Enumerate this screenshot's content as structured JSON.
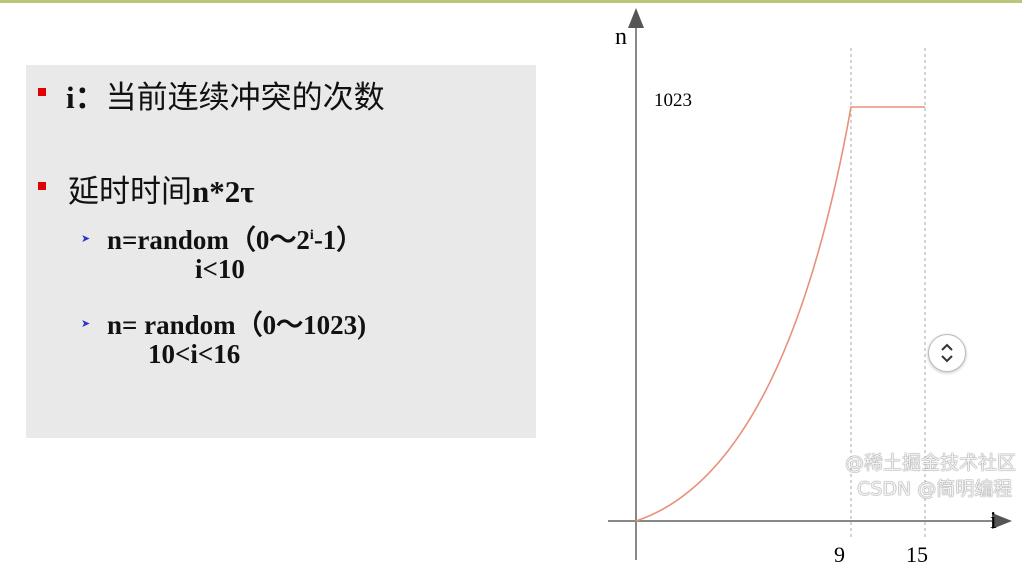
{
  "slide": {
    "bullets": [
      {
        "label": "i：",
        "text": "当前连续冲突的次数"
      },
      {
        "label": "延时时间",
        "text": "n*2τ"
      }
    ],
    "sub_bullets": [
      {
        "prefix": "n=random（0～2",
        "sup": "i",
        "suffix": "-1）",
        "condition": "i<10"
      },
      {
        "prefix": "n= random（0～1023)",
        "condition": "10<i<16"
      }
    ]
  },
  "chart_data": {
    "type": "line",
    "xlabel": "i",
    "ylabel": "n",
    "x_tick_labels": [
      "9",
      "15"
    ],
    "y_tick_labels": [
      "1023"
    ],
    "series": [
      {
        "x": [
          0,
          9,
          15
        ],
        "y": [
          0,
          1023,
          1023
        ],
        "color": "#e8907a"
      }
    ],
    "grid": false
  },
  "watermark": {
    "line1": "@稀土掘金技术社区",
    "line2": "CSDN @简明编程"
  },
  "scroll_icon": "chevron-up-down-icon"
}
